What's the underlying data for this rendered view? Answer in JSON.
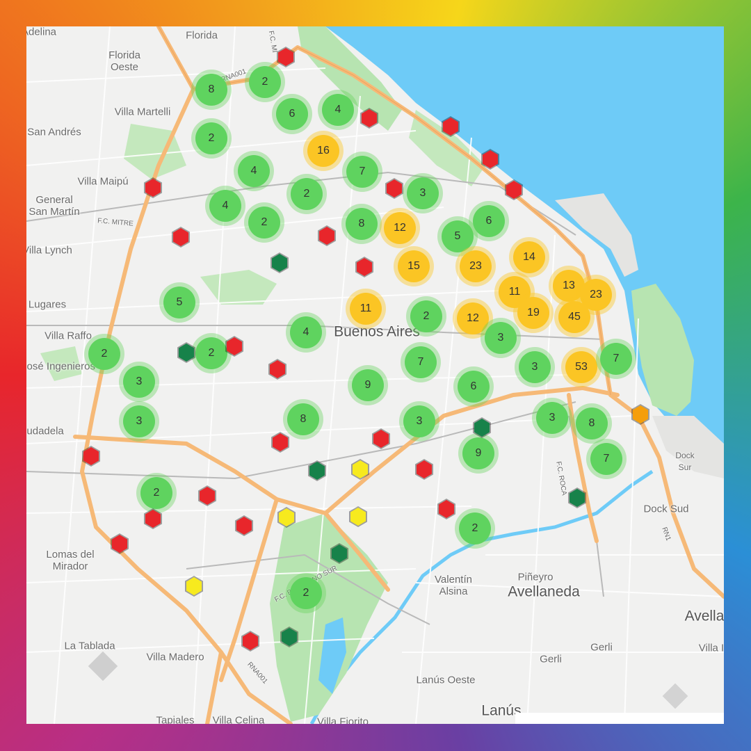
{
  "colors": {
    "border_gradient": [
      "#e8262b",
      "#f07f1d",
      "#f6d61a",
      "#3cb44a",
      "#2b8fd6",
      "#6a3fa3",
      "#b72f86"
    ],
    "land": "#f1f1f0",
    "water": "#6ecbf7",
    "park": "#b7e4b1",
    "highway": "#f6b977",
    "road": "#ffffff",
    "cluster_green": "#5fd35f",
    "cluster_yellow": "#fbc524",
    "marker_red": "#e8262b",
    "marker_dark_green": "#17824a",
    "marker_yellow": "#f7ea1e",
    "marker_orange": "#f59e0b"
  },
  "place_labels": [
    {
      "id": "adelina",
      "text": "Adelina"
    },
    {
      "id": "florida",
      "text": "Florida"
    },
    {
      "id": "florida-oeste",
      "text": "Florida\nOeste"
    },
    {
      "id": "villa-martelli",
      "text": "Villa Martelli"
    },
    {
      "id": "san-andres",
      "text": "San Andrés"
    },
    {
      "id": "villa-maipu",
      "text": "Villa Maipú"
    },
    {
      "id": "general-san-martin",
      "text": "General\nSan Martín"
    },
    {
      "id": "villa-lynch",
      "text": "Villa Lynch"
    },
    {
      "id": "lugares",
      "text": "Lugares"
    },
    {
      "id": "villa-raffo",
      "text": "Villa Raffo"
    },
    {
      "id": "jose-ingenieros",
      "text": "José Ingenieros"
    },
    {
      "id": "ciudadela",
      "text": "Ciudadela"
    },
    {
      "id": "buenos-aires",
      "text": "Buenos Aires"
    },
    {
      "id": "lomas-del-mirador",
      "text": "Lomas del\nMirador"
    },
    {
      "id": "la-tablada",
      "text": "La Tablada"
    },
    {
      "id": "villa-madero",
      "text": "Villa Madero"
    },
    {
      "id": "tapiales",
      "text": "Tapiales"
    },
    {
      "id": "villa-celina",
      "text": "Villa Celina"
    },
    {
      "id": "villa-fiorito",
      "text": "Villa Fiorito"
    },
    {
      "id": "valentin-alsina",
      "text": "Valentín\nAlsina"
    },
    {
      "id": "pineyro",
      "text": "Piñeyro"
    },
    {
      "id": "avellaneda",
      "text": "Avellaneda"
    },
    {
      "id": "gerli-west",
      "text": "Gerli"
    },
    {
      "id": "gerli-east",
      "text": "Gerli"
    },
    {
      "id": "lanus-oeste",
      "text": "Lanús Oeste"
    },
    {
      "id": "lanus",
      "text": "Lanús"
    },
    {
      "id": "dock-sud",
      "text": "Dock Sud"
    },
    {
      "id": "dock-sur",
      "text": "Dock\nSur"
    },
    {
      "id": "avella-edge",
      "text": "Avella"
    },
    {
      "id": "villa-edge",
      "text": "Villa I"
    }
  ],
  "road_labels": [
    {
      "id": "fc-mitre",
      "text": "F.C. MITRE"
    },
    {
      "id": "rna001-north",
      "text": "RNA001"
    },
    {
      "id": "rna001-south",
      "text": "RNA001"
    },
    {
      "id": "fc-belgrano-sur",
      "text": "F.C. BELGRANO SUR"
    },
    {
      "id": "fc-roca",
      "text": "F.C. ROCA"
    },
    {
      "id": "fc-mi",
      "text": "F.C. MI"
    },
    {
      "id": "rn1",
      "text": "RN1"
    }
  ],
  "clusters": [
    {
      "count": 8,
      "level": "green"
    },
    {
      "count": 2,
      "level": "green"
    },
    {
      "count": 6,
      "level": "green"
    },
    {
      "count": 4,
      "level": "green"
    },
    {
      "count": 2,
      "level": "green"
    },
    {
      "count": 16,
      "level": "yellow"
    },
    {
      "count": 4,
      "level": "green"
    },
    {
      "count": 7,
      "level": "green"
    },
    {
      "count": 2,
      "level": "green"
    },
    {
      "count": 3,
      "level": "green"
    },
    {
      "count": 4,
      "level": "green"
    },
    {
      "count": 2,
      "level": "green"
    },
    {
      "count": 8,
      "level": "green"
    },
    {
      "count": 12,
      "level": "yellow"
    },
    {
      "count": 5,
      "level": "green"
    },
    {
      "count": 6,
      "level": "green"
    },
    {
      "count": 15,
      "level": "yellow"
    },
    {
      "count": 23,
      "level": "yellow"
    },
    {
      "count": 14,
      "level": "yellow"
    },
    {
      "count": 11,
      "level": "yellow"
    },
    {
      "count": 13,
      "level": "yellow"
    },
    {
      "count": 23,
      "level": "yellow"
    },
    {
      "count": 5,
      "level": "green"
    },
    {
      "count": 11,
      "level": "yellow"
    },
    {
      "count": 2,
      "level": "green"
    },
    {
      "count": 12,
      "level": "yellow"
    },
    {
      "count": 19,
      "level": "yellow"
    },
    {
      "count": 45,
      "level": "yellow"
    },
    {
      "count": 2,
      "level": "green"
    },
    {
      "count": 4,
      "level": "green"
    },
    {
      "count": 3,
      "level": "green"
    },
    {
      "count": 2,
      "level": "green"
    },
    {
      "count": 7,
      "level": "green"
    },
    {
      "count": 3,
      "level": "green"
    },
    {
      "count": 53,
      "level": "yellow"
    },
    {
      "count": 7,
      "level": "green"
    },
    {
      "count": 3,
      "level": "green"
    },
    {
      "count": 9,
      "level": "green"
    },
    {
      "count": 6,
      "level": "green"
    },
    {
      "count": 3,
      "level": "green"
    },
    {
      "count": 8,
      "level": "green"
    },
    {
      "count": 3,
      "level": "green"
    },
    {
      "count": 3,
      "level": "green"
    },
    {
      "count": 8,
      "level": "green"
    },
    {
      "count": 9,
      "level": "green"
    },
    {
      "count": 7,
      "level": "green"
    },
    {
      "count": 2,
      "level": "green"
    },
    {
      "count": 2,
      "level": "green"
    },
    {
      "count": 2,
      "level": "green"
    }
  ],
  "markers": [
    {
      "color": "red"
    },
    {
      "color": "red"
    },
    {
      "color": "red"
    },
    {
      "color": "red"
    },
    {
      "color": "red"
    },
    {
      "color": "red"
    },
    {
      "color": "red"
    },
    {
      "color": "red"
    },
    {
      "color": "red"
    },
    {
      "color": "red"
    },
    {
      "color": "red"
    },
    {
      "color": "red"
    },
    {
      "color": "red"
    },
    {
      "color": "red"
    },
    {
      "color": "red"
    },
    {
      "color": "red"
    },
    {
      "color": "red"
    },
    {
      "color": "red"
    },
    {
      "color": "red"
    },
    {
      "color": "red"
    },
    {
      "color": "red"
    },
    {
      "color": "red"
    },
    {
      "color": "dark-green"
    },
    {
      "color": "dark-green"
    },
    {
      "color": "dark-green"
    },
    {
      "color": "dark-green"
    },
    {
      "color": "dark-green"
    },
    {
      "color": "dark-green"
    },
    {
      "color": "dark-green"
    },
    {
      "color": "yellow"
    },
    {
      "color": "yellow"
    },
    {
      "color": "yellow"
    },
    {
      "color": "yellow"
    },
    {
      "color": "orange"
    }
  ]
}
